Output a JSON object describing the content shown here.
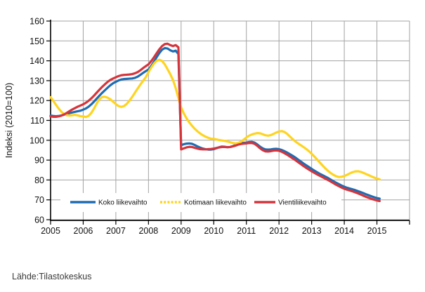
{
  "chart_data": {
    "type": "line",
    "title": "",
    "xlabel": "",
    "ylabel": "Indeksi (2010=100)",
    "ylim": [
      60,
      160
    ],
    "xlim": [
      2005,
      2016
    ],
    "yticks": [
      60,
      70,
      80,
      90,
      100,
      110,
      120,
      130,
      140,
      150,
      160
    ],
    "xticks": [
      2005,
      2006,
      2007,
      2008,
      2009,
      2010,
      2011,
      2012,
      2013,
      2014,
      2015
    ],
    "grid": true,
    "legend_position": "bottom-inside",
    "x_frequency": "monthly",
    "x_start": "2005-01",
    "x_end": "2015-02",
    "series": [
      {
        "name": "Koko liikevaihto",
        "color": "#1f6cb2",
        "legend_style": "solid",
        "values": [
          112.4,
          112.2,
          112.1,
          112.2,
          112.5,
          112.9,
          113.3,
          113.7,
          114.0,
          114.3,
          114.6,
          114.9,
          115.4,
          116.0,
          116.9,
          118.1,
          119.5,
          121.0,
          122.5,
          123.9,
          125.2,
          126.5,
          127.7,
          128.7,
          129.4,
          130.1,
          130.6,
          130.8,
          130.9,
          131.0,
          131.1,
          131.4,
          132.0,
          132.9,
          133.9,
          134.8,
          135.6,
          137.4,
          139.5,
          141.8,
          143.9,
          145.6,
          146.4,
          146.2,
          145.3,
          144.7,
          145.1,
          143.4,
          97.5,
          98.0,
          98.3,
          98.4,
          98.2,
          97.6,
          96.9,
          96.3,
          95.8,
          95.5,
          95.3,
          95.3,
          95.5,
          96.0,
          96.5,
          96.8,
          96.7,
          96.5,
          96.6,
          97.0,
          97.6,
          98.2,
          98.6,
          98.7,
          98.8,
          99.1,
          99.2,
          98.8,
          97.9,
          96.8,
          95.9,
          95.4,
          95.3,
          95.4,
          95.6,
          95.7,
          95.5,
          95.1,
          94.5,
          93.8,
          93.0,
          92.2,
          91.3,
          90.3,
          89.3,
          88.3,
          87.4,
          86.5,
          85.6,
          84.7,
          83.9,
          83.1,
          82.4,
          81.7,
          81.0,
          80.2,
          79.4,
          78.6,
          77.9,
          77.2,
          76.6,
          76.1,
          75.7,
          75.3,
          74.9,
          74.4,
          73.9,
          73.4,
          72.8,
          72.3,
          71.8,
          71.3,
          70.9,
          70.6
        ]
      },
      {
        "name": "Kotimaan liikevaihto",
        "color": "#ffd41f",
        "legend_style": "dashed",
        "values": [
          121.7,
          119.8,
          117.8,
          115.9,
          114.3,
          113.2,
          112.6,
          112.4,
          112.6,
          112.8,
          112.5,
          112.1,
          112.0,
          111.7,
          112.3,
          113.8,
          116.0,
          118.6,
          120.7,
          121.8,
          121.9,
          121.4,
          120.6,
          119.4,
          118.2,
          117.2,
          116.8,
          117.2,
          118.3,
          119.9,
          121.8,
          123.9,
          126.0,
          128.0,
          129.9,
          131.7,
          134.3,
          136.6,
          138.6,
          140.0,
          140.5,
          139.9,
          138.2,
          135.8,
          133.3,
          130.4,
          126.3,
          121.3,
          116.5,
          113.5,
          111.0,
          109.0,
          107.3,
          105.8,
          104.5,
          103.4,
          102.5,
          101.8,
          101.2,
          100.8,
          100.7,
          100.4,
          100.1,
          99.9,
          99.7,
          99.4,
          99.0,
          98.6,
          98.4,
          98.6,
          99.3,
          100.3,
          101.4,
          102.3,
          102.9,
          103.3,
          103.6,
          103.5,
          103.0,
          102.5,
          102.3,
          102.6,
          103.2,
          103.9,
          104.4,
          104.6,
          104.2,
          103.2,
          101.9,
          100.6,
          99.4,
          98.4,
          97.5,
          96.6,
          95.6,
          94.5,
          93.2,
          91.8,
          90.3,
          88.8,
          87.3,
          85.9,
          84.6,
          83.5,
          82.6,
          81.9,
          81.5,
          81.6,
          82.0,
          82.6,
          83.3,
          83.9,
          84.3,
          84.4,
          84.1,
          83.6,
          83.0,
          82.4,
          81.8,
          81.2,
          80.7,
          80.3
        ]
      },
      {
        "name": "Vientiliikevaihto",
        "color": "#d5343b",
        "legend_style": "solid",
        "values": [
          112.0,
          111.8,
          111.8,
          112.0,
          112.4,
          113.0,
          113.8,
          114.7,
          115.5,
          116.2,
          116.9,
          117.5,
          118.1,
          118.9,
          119.9,
          121.1,
          122.5,
          124.0,
          125.5,
          126.9,
          128.2,
          129.4,
          130.4,
          131.1,
          131.7,
          132.3,
          132.7,
          132.9,
          133.0,
          133.1,
          133.3,
          133.7,
          134.3,
          135.2,
          136.3,
          137.3,
          138.2,
          139.8,
          141.7,
          143.8,
          145.8,
          147.4,
          148.4,
          148.6,
          147.9,
          147.4,
          147.9,
          146.8,
          95.4,
          95.9,
          96.4,
          96.7,
          96.6,
          96.2,
          95.8,
          95.5,
          95.4,
          95.4,
          95.5,
          95.6,
          95.8,
          96.1,
          96.4,
          96.6,
          96.6,
          96.5,
          96.6,
          96.9,
          97.3,
          97.8,
          98.1,
          98.3,
          98.4,
          98.6,
          98.6,
          98.2,
          97.2,
          96.0,
          95.0,
          94.4,
          94.3,
          94.5,
          94.8,
          94.9,
          94.7,
          94.2,
          93.5,
          92.7,
          91.8,
          90.9,
          90.0,
          89.0,
          88.0,
          87.0,
          86.1,
          85.2,
          84.4,
          83.6,
          82.8,
          82.1,
          81.4,
          80.7,
          80.0,
          79.2,
          78.4,
          77.6,
          76.9,
          76.2,
          75.6,
          75.1,
          74.7,
          74.3,
          73.8,
          73.3,
          72.7,
          72.1,
          71.5,
          71.0,
          70.5,
          70.1,
          69.7,
          69.4
        ]
      }
    ]
  },
  "colors": {
    "grid": "#a3a3a3",
    "axis": "#000000",
    "tick_text": "#111111",
    "legend_background": "#ffffff"
  },
  "footer": {
    "source": "Lähde:Tilastokeskus"
  }
}
